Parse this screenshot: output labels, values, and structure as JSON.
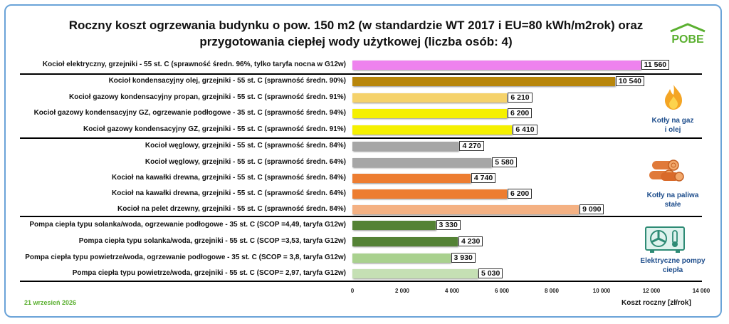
{
  "title_line1": "Roczny koszt ogrzewania budynku o pow. 150 m2 (w standardzie WT 2017 i EU=80 kWh/m2rok) oraz",
  "title_line2": "przygotowania ciepłej wody użytkowej (liczba osób: 4)",
  "logo_text": "POBE",
  "date_text": "21 wrzesień 2026",
  "groups": [
    {
      "label_line1": "Kotły na gaz",
      "label_line2": "i olej",
      "icon": "flame-icon"
    },
    {
      "label_line1": "Kotły na paliwa",
      "label_line2": "stałe",
      "icon": "firewood-logs-icon"
    },
    {
      "label_line1": "Elektryczne pompy",
      "label_line2": "ciepła",
      "icon": "heat-pump-icon"
    }
  ],
  "chart_data": {
    "type": "bar",
    "orientation": "horizontal",
    "xlabel": "Koszt roczny [zł/rok]",
    "xlim": [
      0,
      14000
    ],
    "x_ticks": [
      "0",
      "2 000",
      "4 000",
      "6 000",
      "8 000",
      "10 000",
      "12 000",
      "14 000"
    ],
    "tick_values": [
      0,
      2000,
      4000,
      6000,
      8000,
      10000,
      12000,
      14000
    ],
    "categories": [
      "Kocioł  elektryczny,  grzejniki - 55 st. C  (sprawność średn. 96%, tylko taryfa nocna w G12w)",
      "Kocioł  kondensacyjny olej,  grzejniki - 55 st. C (sprawność średn. 90%)",
      "Kocioł gazowy kondensacyjny propan, grzejniki - 55 st. C (sprawność średn. 91%)",
      "Kocioł gazowy kondensacyjny GZ, ogrzewanie podłogowe - 35 st. C (sprawność średn. 94%)",
      "Kocioł gazowy kondensacyjny GZ, grzejniki - 55 st. C (sprawność średn. 91%)",
      "Kocioł węglowy,  grzejniki - 55 st. C (sprawność średn. 84%)",
      "Kocioł węglowy,  grzejniki - 55 st. C (sprawność średn. 64%)",
      "Kocioł na kawałki drewna, grzejniki - 55 st. C (sprawność średn. 84%)",
      "Kocioł na kawałki drewna, grzejniki - 55 st. C (sprawność średn. 64%)",
      "Kocioł na pelet drzewny, grzejniki - 55 st. C (sprawność średn. 84%)",
      "Pompa ciepła typu solanka/woda, ogrzewanie podłogowe - 35 st. C (SCOP =4,49, taryfa G12w)",
      "Pompa ciepła typu solanka/woda, grzejniki - 55 st. C (SCOP =3,53, taryfa G12w)",
      "Pompa ciepła typu powietrze/woda, ogrzewanie podłogowe - 35 st. C (SCOP = 3,8, taryfa G12w)",
      "Pompa ciepła typu powietrze/woda, grzejniki - 55 st. C (SCOP= 2,97, taryfa G12w)"
    ],
    "values": [
      11560,
      10540,
      6210,
      6200,
      6410,
      4270,
      5580,
      4740,
      6200,
      9090,
      3330,
      4230,
      3930,
      5030
    ],
    "value_labels": [
      "11 560",
      "10 540",
      "6 210",
      "6 200",
      "6 410",
      "4 270",
      "5 580",
      "4 740",
      "6 200",
      "9 090",
      "3 330",
      "4 230",
      "3 930",
      "5 030"
    ],
    "colors": [
      "#ee82ee",
      "#b8860b",
      "#f5d26b",
      "#f5f000",
      "#f5f000",
      "#a6a6a6",
      "#a6a6a6",
      "#ed7d31",
      "#ed7d31",
      "#f4b183",
      "#548235",
      "#548235",
      "#a9d18e",
      "#c5e0b4"
    ],
    "grid": false,
    "legend": "none"
  }
}
